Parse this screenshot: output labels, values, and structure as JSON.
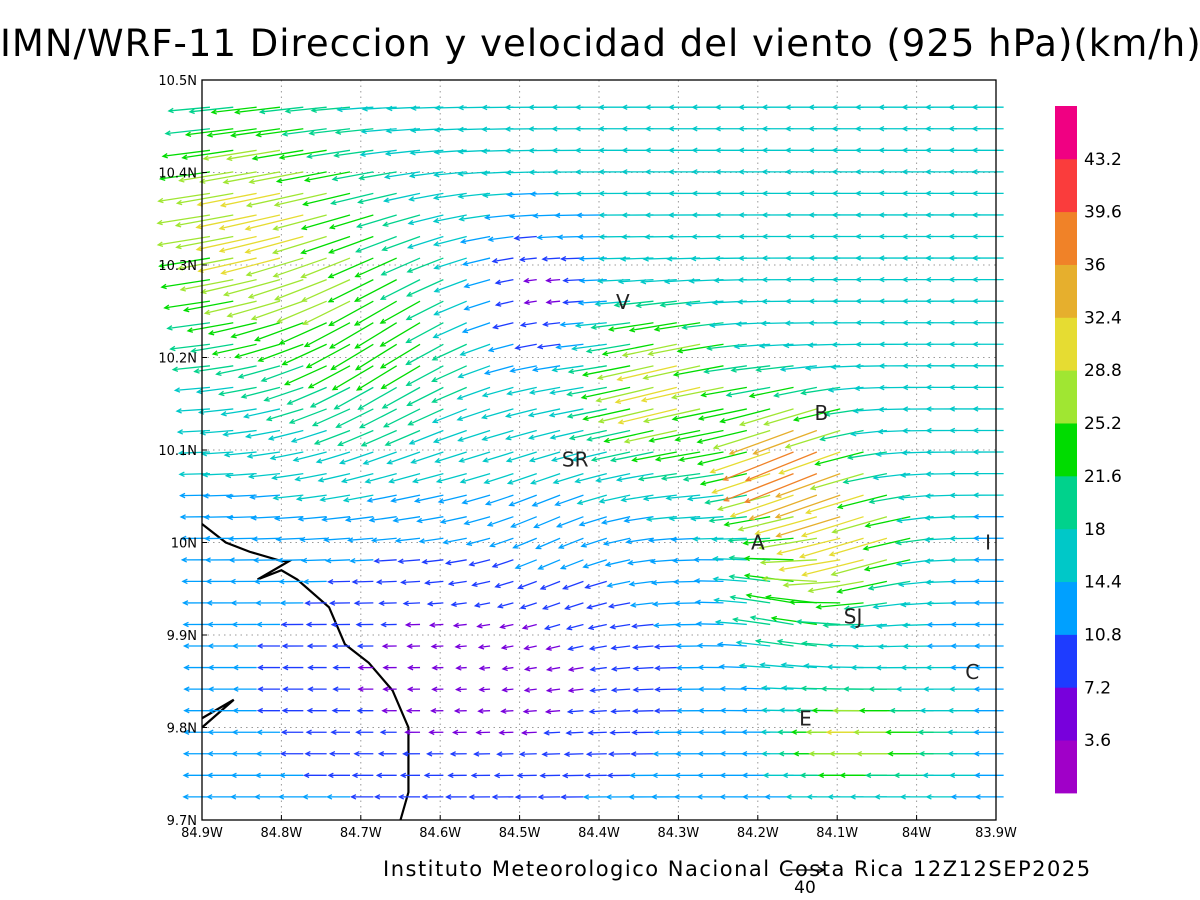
{
  "title": "IMN/WRF-11 Direccion y velocidad del viento (925 hPa)(km/h)",
  "footer": "Instituto Meteorologico Nacional Costa Rica 12Z12SEP2025",
  "reference_vector": {
    "label": "40",
    "speed_kmh": 40
  },
  "axes": {
    "lon_range": [
      -84.9,
      -83.9
    ],
    "lat_range": [
      9.7,
      10.5
    ],
    "x_ticks": [
      "84.9W",
      "84.8W",
      "84.7W",
      "84.6W",
      "84.5W",
      "84.4W",
      "84.3W",
      "84.2W",
      "84.1W",
      "84W",
      "83.9W"
    ],
    "y_ticks": [
      "9.7N",
      "9.8N",
      "9.9N",
      "10N",
      "10.1N",
      "10.2N",
      "10.3N",
      "10.4N",
      "10.5N"
    ],
    "grid": "dotted"
  },
  "colorbar": {
    "labels": [
      "3.6",
      "7.2",
      "10.8",
      "14.4",
      "18",
      "21.6",
      "25.2",
      "28.8",
      "32.4",
      "36",
      "39.6",
      "43.2"
    ],
    "colors": [
      "#a000c8",
      "#7800dc",
      "#1e3cff",
      "#00a0ff",
      "#00c8c8",
      "#00d28c",
      "#00dc00",
      "#a0e632",
      "#e6dc32",
      "#e6af2d",
      "#f08228",
      "#fa3c3c",
      "#f00082"
    ]
  },
  "cities": [
    {
      "label": "V",
      "lon": -84.37,
      "lat": 10.26
    },
    {
      "label": "B",
      "lon": -84.12,
      "lat": 10.14
    },
    {
      "label": "SR",
      "lon": -84.43,
      "lat": 10.09
    },
    {
      "label": "A",
      "lon": -84.2,
      "lat": 10.0
    },
    {
      "label": "I",
      "lon": -83.91,
      "lat": 10.0
    },
    {
      "label": "SJ",
      "lon": -84.08,
      "lat": 9.92
    },
    {
      "label": "C",
      "lon": -83.93,
      "lat": 9.86
    },
    {
      "label": "E",
      "lon": -84.14,
      "lat": 9.81
    }
  ],
  "coastline": [
    [
      [
        -84.9,
        10.02
      ],
      [
        -84.87,
        10.0
      ],
      [
        -84.84,
        9.99
      ],
      [
        -84.8,
        9.98
      ],
      [
        -84.79,
        9.98
      ],
      [
        -84.83,
        9.96
      ],
      [
        -84.8,
        9.97
      ],
      [
        -84.78,
        9.96
      ],
      [
        -84.74,
        9.93
      ],
      [
        -84.72,
        9.89
      ],
      [
        -84.69,
        9.87
      ],
      [
        -84.66,
        9.84
      ],
      [
        -84.64,
        9.8
      ],
      [
        -84.64,
        9.77
      ],
      [
        -84.64,
        9.73
      ],
      [
        -84.65,
        9.7
      ]
    ],
    [
      [
        -84.9,
        9.8
      ],
      [
        -84.86,
        9.83
      ],
      [
        -84.88,
        9.82
      ],
      [
        -84.9,
        9.81
      ]
    ]
  ]
}
